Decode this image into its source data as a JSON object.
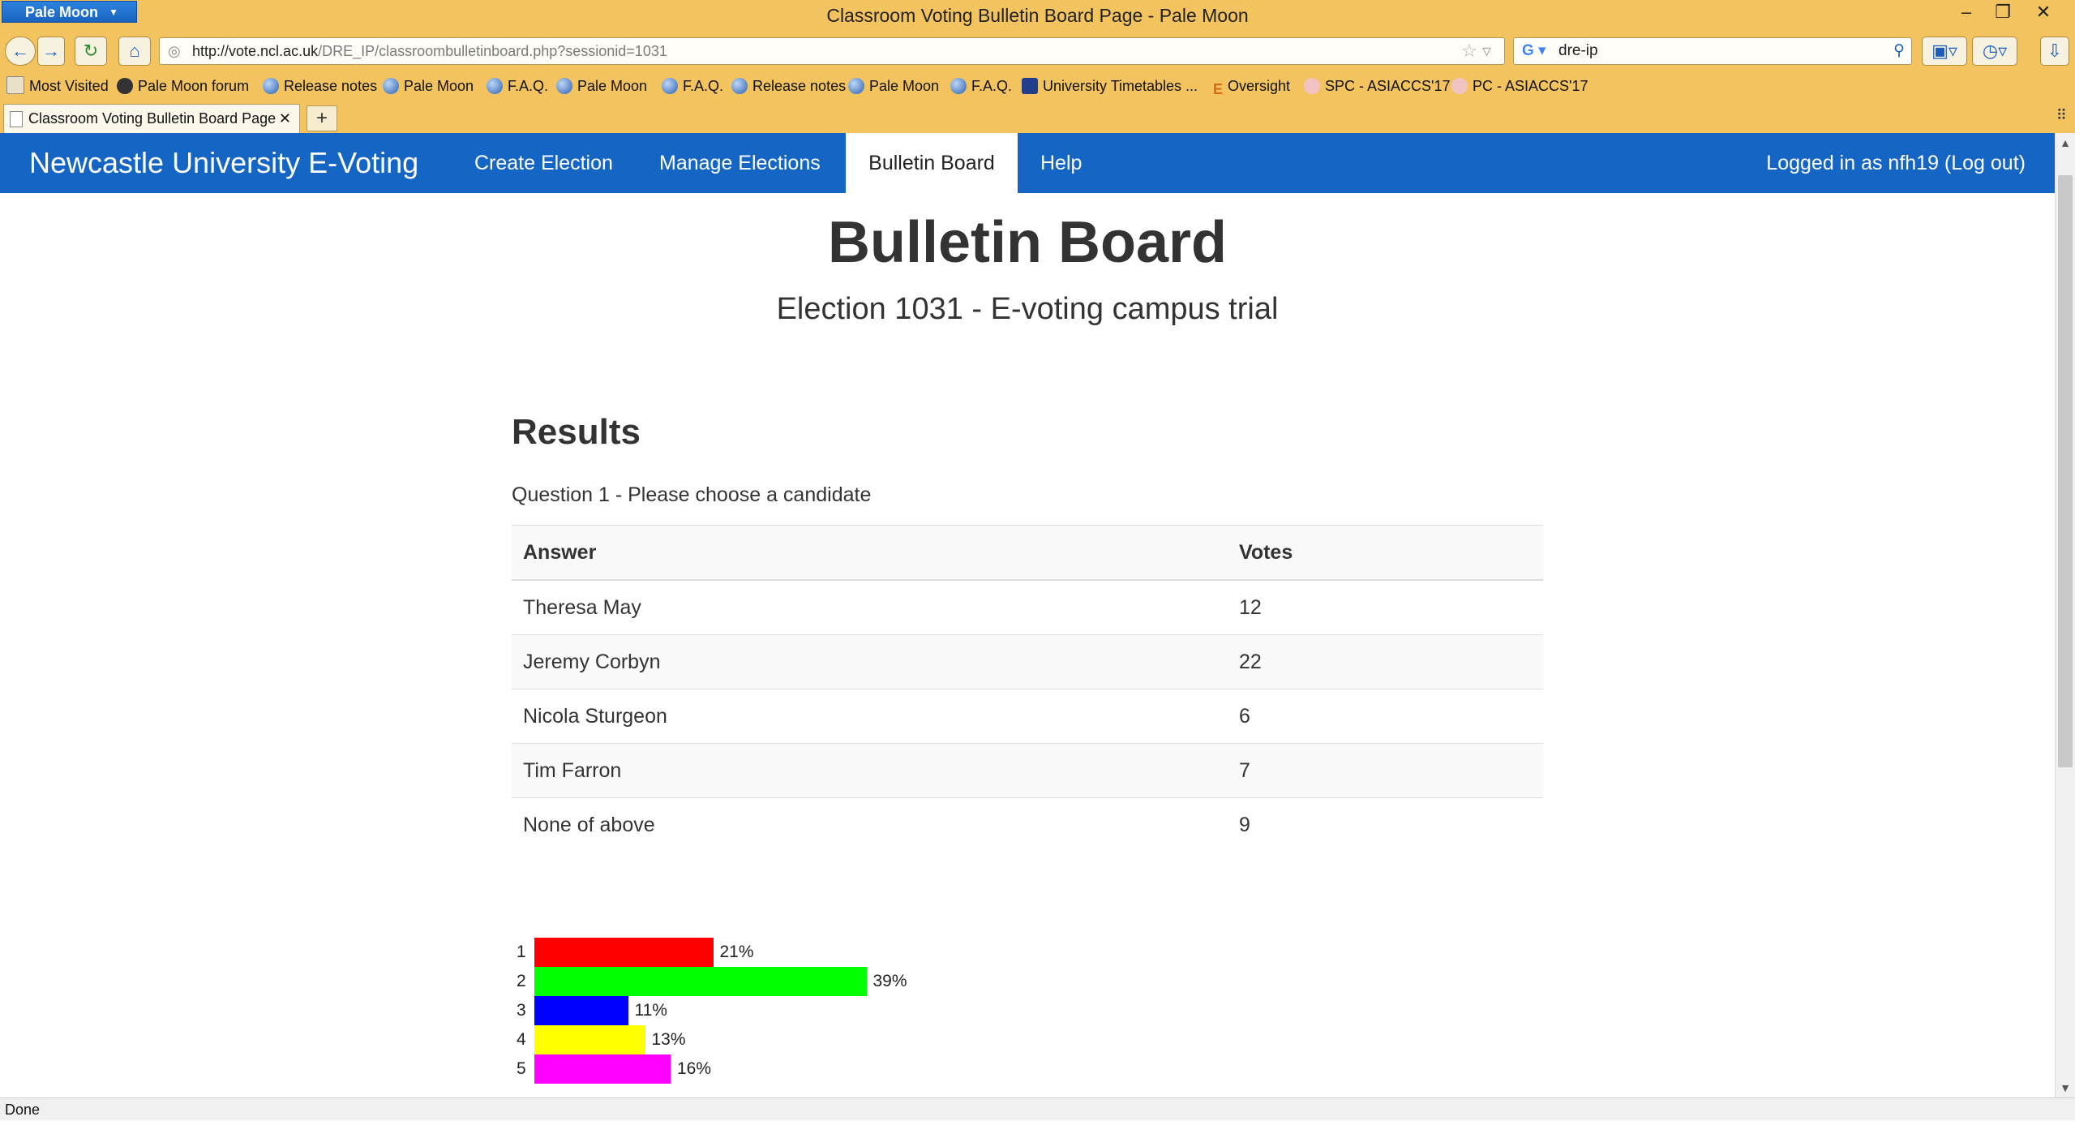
{
  "browser": {
    "app_menu": "Pale Moon",
    "window_title": "Classroom Voting Bulletin Board Page - Pale Moon",
    "url_host": "http://vote.ncl.ac.uk",
    "url_path": "/DRE_IP/classroombulletinboard.php?sessionid=1031",
    "search_value": "dre-ip",
    "bookmarks": [
      "Most Visited",
      "Pale Moon forum",
      "Release notes",
      "Pale Moon",
      "F.A.Q.",
      "Pale Moon",
      "F.A.Q.",
      "Release notes",
      "Pale Moon",
      "F.A.Q.",
      "University Timetables ...",
      "Oversight",
      "SPC - ASIACCS'17",
      "PC - ASIACCS'17"
    ],
    "tab_title": "Classroom Voting Bulletin Board Page",
    "status": "Done"
  },
  "site": {
    "brand": "Newcastle University E-Voting",
    "nav": [
      "Create Election",
      "Manage Elections",
      "Bulletin Board",
      "Help"
    ],
    "active_nav": "Bulletin Board",
    "login": "Logged in as nfh19 (Log out)"
  },
  "page": {
    "title": "Bulletin Board",
    "subtitle": "Election 1031 - E-voting campus trial",
    "results_heading": "Results",
    "question": "Question 1 - Please choose a candidate",
    "table": {
      "headers": [
        "Answer",
        "Votes"
      ],
      "rows": [
        [
          "Theresa May",
          "12"
        ],
        [
          "Jeremy Corbyn",
          "22"
        ],
        [
          "Nicola Sturgeon",
          "6"
        ],
        [
          "Tim Farron",
          "7"
        ],
        [
          "None of above",
          "9"
        ]
      ]
    }
  },
  "chart_data": {
    "type": "bar",
    "orientation": "horizontal",
    "categories": [
      "1",
      "2",
      "3",
      "4",
      "5"
    ],
    "values": [
      21,
      39,
      11,
      13,
      16
    ],
    "labels": [
      "21%",
      "39%",
      "11%",
      "13%",
      "16%"
    ],
    "colors": [
      "#ff0000",
      "#00ff00",
      "#0000ff",
      "#ffff00",
      "#ff00ff"
    ]
  }
}
